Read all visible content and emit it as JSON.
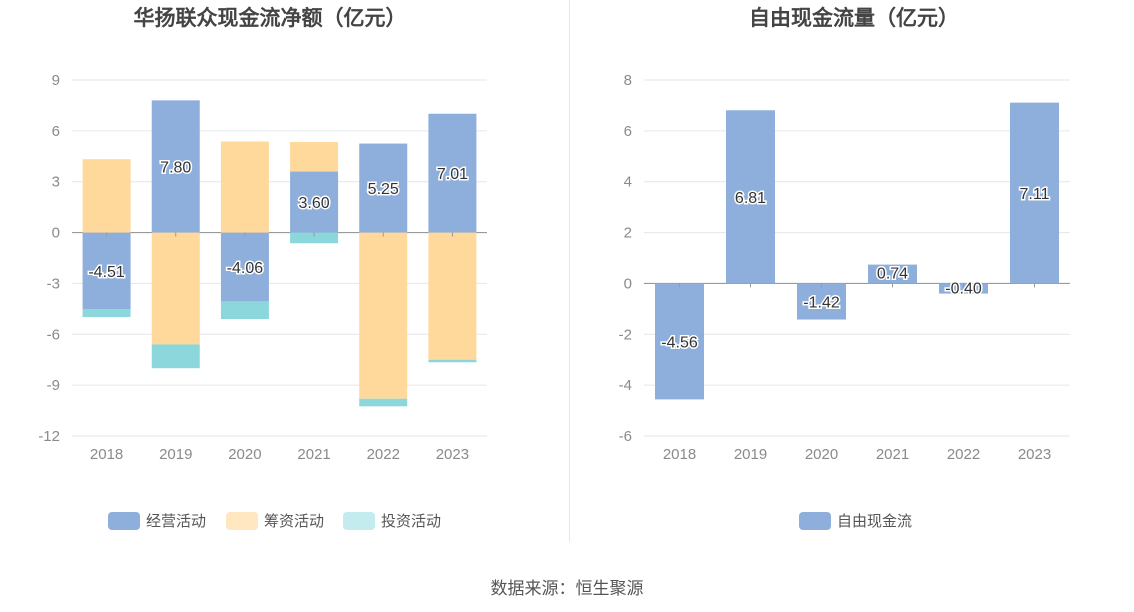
{
  "source_text": "数据来源：恒生聚源",
  "chart_data": [
    {
      "type": "bar",
      "stacked": true,
      "title": "华扬联众现金流净额（亿元）",
      "categories": [
        "2018",
        "2019",
        "2020",
        "2021",
        "2022",
        "2023"
      ],
      "ylim": [
        -12,
        9
      ],
      "yticks": [
        9,
        6,
        3,
        0,
        -3,
        -6,
        -9,
        -12
      ],
      "series": [
        {
          "name": "经营活动",
          "color": "#8eaedb",
          "values": [
            -4.51,
            7.8,
            -4.06,
            3.6,
            5.25,
            7.01
          ],
          "labels": [
            "-4.51",
            "7.80",
            "-4.06",
            "3.60",
            "5.25",
            "7.01"
          ]
        },
        {
          "name": "筹资活动",
          "color": "#ffd99c",
          "values": [
            4.33,
            -6.6,
            5.37,
            1.74,
            -9.8,
            -7.5
          ]
        },
        {
          "name": "投资活动",
          "color": "#8bd7dc",
          "values": [
            -0.47,
            -1.4,
            -1.04,
            -0.63,
            -0.45,
            -0.15
          ]
        }
      ],
      "legend": [
        "经营活动",
        "筹资活动",
        "投资活动"
      ],
      "legend_colors": [
        "#8eaedb",
        "#ffe7c2",
        "#c2ecee"
      ]
    },
    {
      "type": "bar",
      "title": "自由现金流量（亿元）",
      "categories": [
        "2018",
        "2019",
        "2020",
        "2021",
        "2022",
        "2023"
      ],
      "ylim": [
        -6,
        8
      ],
      "yticks": [
        8,
        6,
        4,
        2,
        0,
        -2,
        -4,
        -6
      ],
      "series": [
        {
          "name": "自由现金流",
          "color": "#8eaedb",
          "values": [
            -4.56,
            6.81,
            -1.42,
            0.74,
            -0.4,
            7.11
          ],
          "labels": [
            "-4.56",
            "6.81",
            "-1.42",
            "0.74",
            "-0.40",
            "7.11"
          ]
        }
      ],
      "legend": [
        "自由现金流"
      ],
      "legend_colors": [
        "#8eaedb"
      ]
    }
  ]
}
